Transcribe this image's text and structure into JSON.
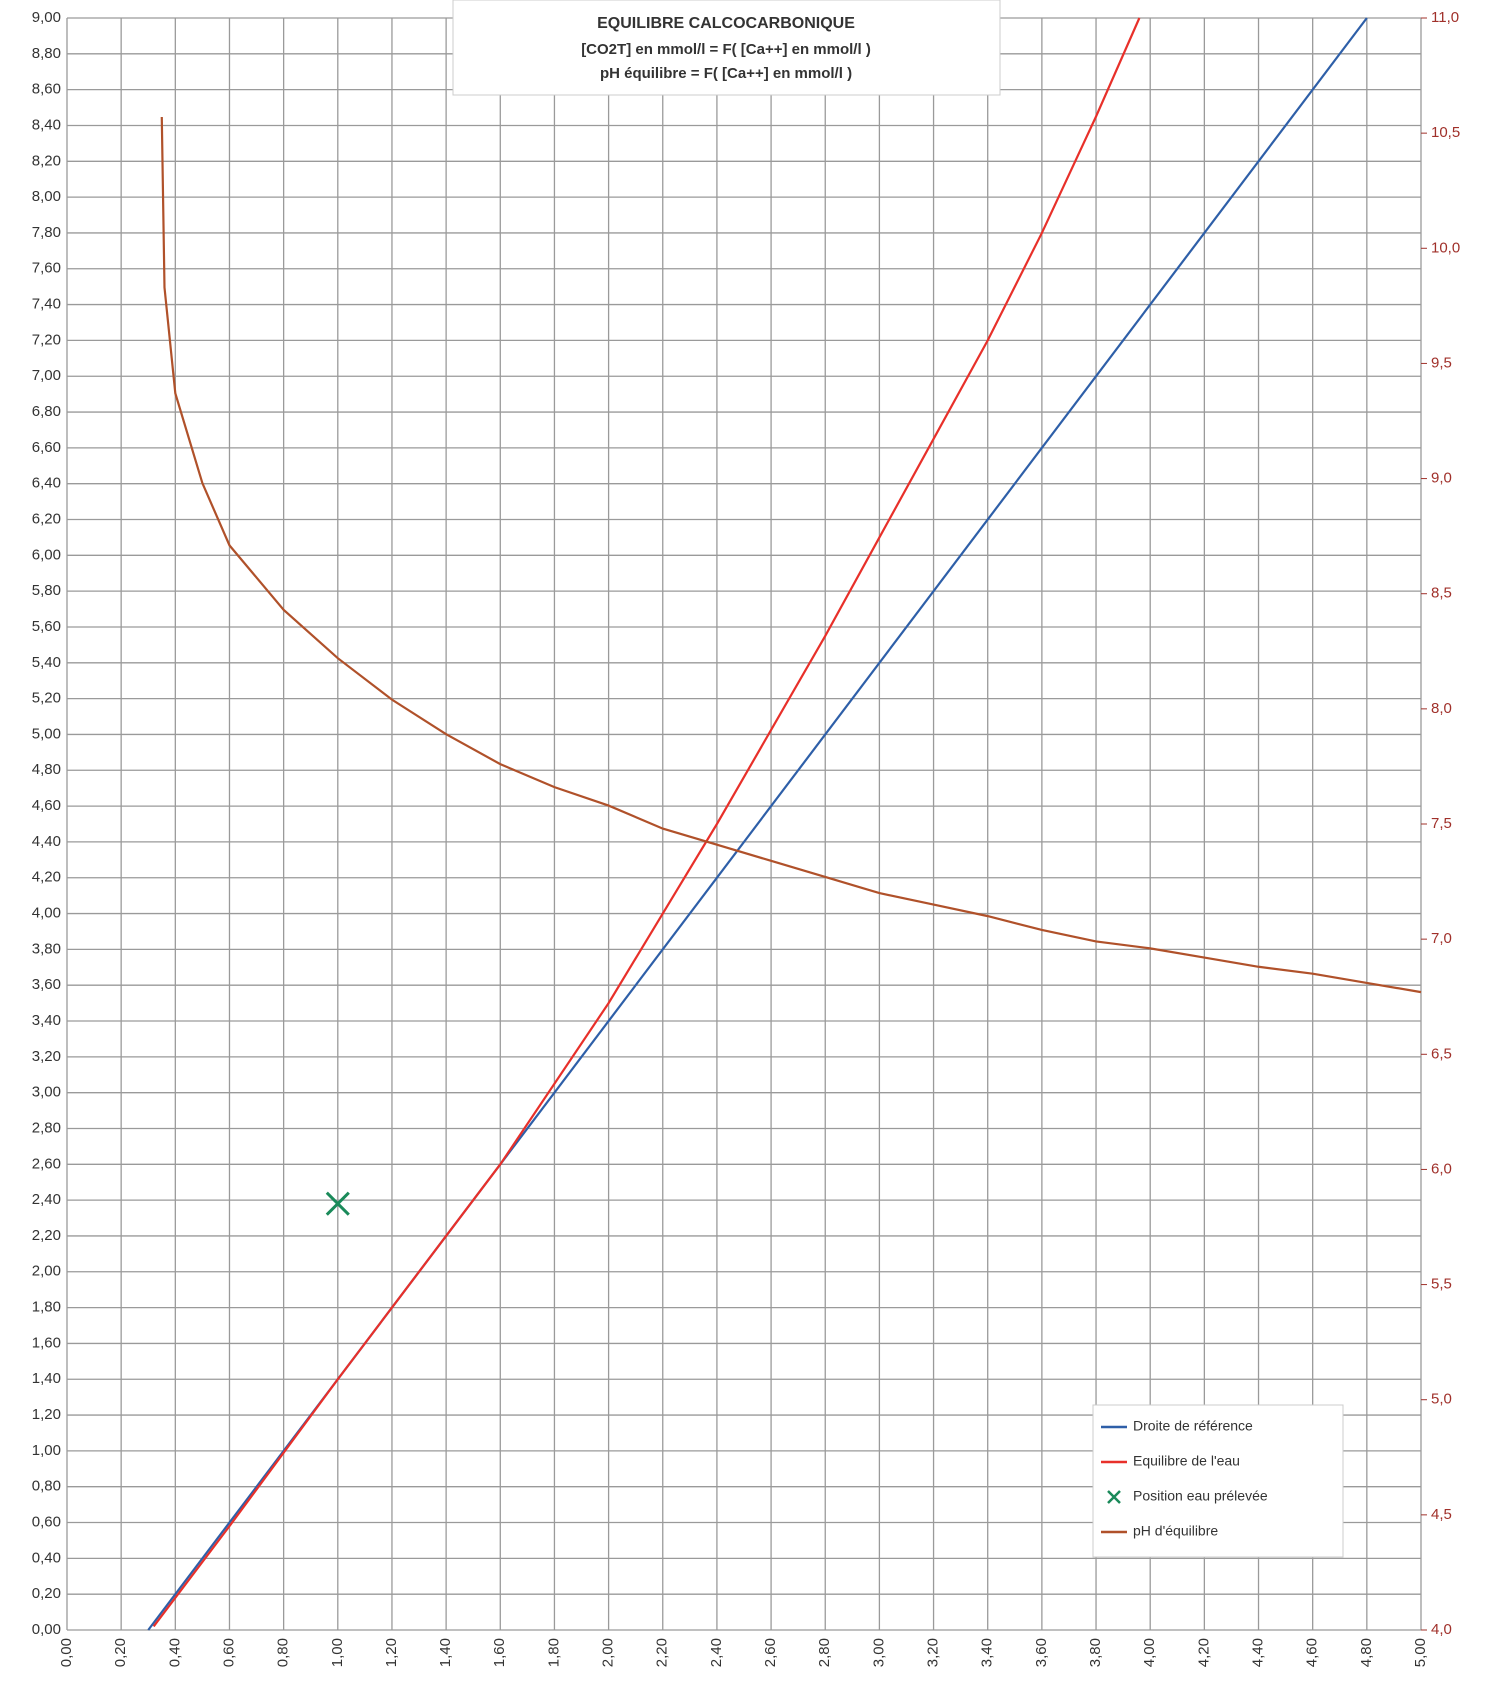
{
  "chart_data": {
    "type": "line",
    "title": "EQUILIBRE CALCOCARBONIQUE",
    "subtitle": [
      "[CO2T] en mmol/l = F( [Ca++] en mmol/l )",
      "pH équilibre = F( [Ca++] en mmol/l )"
    ],
    "xlim": [
      0,
      5
    ],
    "ylim": [
      0,
      9
    ],
    "y2lim": [
      4,
      11
    ],
    "grid": true,
    "legend": "bottom-right",
    "xticks": [
      {
        "value": 0,
        "label": "0,00"
      },
      {
        "value": 0.2,
        "label": "0,20"
      },
      {
        "value": 0.4,
        "label": "0,40"
      },
      {
        "value": 0.6,
        "label": "0,60"
      },
      {
        "value": 0.8,
        "label": "0,80"
      },
      {
        "value": 1.0,
        "label": "1,00"
      },
      {
        "value": 1.2,
        "label": "1,20"
      },
      {
        "value": 1.4,
        "label": "1,40"
      },
      {
        "value": 1.6,
        "label": "1,60"
      },
      {
        "value": 1.8,
        "label": "1,80"
      },
      {
        "value": 2.0,
        "label": "2,00"
      },
      {
        "value": 2.2,
        "label": "2,20"
      },
      {
        "value": 2.4,
        "label": "2,40"
      },
      {
        "value": 2.6,
        "label": "2,60"
      },
      {
        "value": 2.8,
        "label": "2,80"
      },
      {
        "value": 3.0,
        "label": "3,00"
      },
      {
        "value": 3.2,
        "label": "3,20"
      },
      {
        "value": 3.4,
        "label": "3,40"
      },
      {
        "value": 3.6,
        "label": "3,60"
      },
      {
        "value": 3.8,
        "label": "3,80"
      },
      {
        "value": 4.0,
        "label": "4,00"
      },
      {
        "value": 4.2,
        "label": "4,20"
      },
      {
        "value": 4.4,
        "label": "4,40"
      },
      {
        "value": 4.6,
        "label": "4,60"
      },
      {
        "value": 4.8,
        "label": "4,80"
      },
      {
        "value": 5.0,
        "label": "5,00"
      }
    ],
    "yticks": [
      {
        "value": 0,
        "label": "0,00"
      },
      {
        "value": 0.2,
        "label": "0,20"
      },
      {
        "value": 0.4,
        "label": "0,40"
      },
      {
        "value": 0.6,
        "label": "0,60"
      },
      {
        "value": 0.8,
        "label": "0,80"
      },
      {
        "value": 1.0,
        "label": "1,00"
      },
      {
        "value": 1.2,
        "label": "1,20"
      },
      {
        "value": 1.4,
        "label": "1,40"
      },
      {
        "value": 1.6,
        "label": "1,60"
      },
      {
        "value": 1.8,
        "label": "1,80"
      },
      {
        "value": 2.0,
        "label": "2,00"
      },
      {
        "value": 2.2,
        "label": "2,20"
      },
      {
        "value": 2.4,
        "label": "2,40"
      },
      {
        "value": 2.6,
        "label": "2,60"
      },
      {
        "value": 2.8,
        "label": "2,80"
      },
      {
        "value": 3.0,
        "label": "3,00"
      },
      {
        "value": 3.2,
        "label": "3,20"
      },
      {
        "value": 3.4,
        "label": "3,40"
      },
      {
        "value": 3.6,
        "label": "3,60"
      },
      {
        "value": 3.8,
        "label": "3,80"
      },
      {
        "value": 4.0,
        "label": "4,00"
      },
      {
        "value": 4.2,
        "label": "4,20"
      },
      {
        "value": 4.4,
        "label": "4,40"
      },
      {
        "value": 4.6,
        "label": "4,60"
      },
      {
        "value": 4.8,
        "label": "4,80"
      },
      {
        "value": 5.0,
        "label": "5,00"
      },
      {
        "value": 5.2,
        "label": "5,20"
      },
      {
        "value": 5.4,
        "label": "5,40"
      },
      {
        "value": 5.6,
        "label": "5,60"
      },
      {
        "value": 5.8,
        "label": "5,80"
      },
      {
        "value": 6.0,
        "label": "6,00"
      },
      {
        "value": 6.2,
        "label": "6,20"
      },
      {
        "value": 6.4,
        "label": "6,40"
      },
      {
        "value": 6.6,
        "label": "6,60"
      },
      {
        "value": 6.8,
        "label": "6,80"
      },
      {
        "value": 7.0,
        "label": "7,00"
      },
      {
        "value": 7.2,
        "label": "7,20"
      },
      {
        "value": 7.4,
        "label": "7,40"
      },
      {
        "value": 7.6,
        "label": "7,60"
      },
      {
        "value": 7.8,
        "label": "7,80"
      },
      {
        "value": 8.0,
        "label": "8,00"
      },
      {
        "value": 8.2,
        "label": "8,20"
      },
      {
        "value": 8.4,
        "label": "8,40"
      },
      {
        "value": 8.6,
        "label": "8,60"
      },
      {
        "value": 8.8,
        "label": "8,80"
      },
      {
        "value": 9.0,
        "label": "9,00"
      }
    ],
    "y2ticks": [
      {
        "value": 4.0,
        "label": "4,0"
      },
      {
        "value": 4.5,
        "label": "4,5"
      },
      {
        "value": 5.0,
        "label": "5,0"
      },
      {
        "value": 5.5,
        "label": "5,5"
      },
      {
        "value": 6.0,
        "label": "6,0"
      },
      {
        "value": 6.5,
        "label": "6,5"
      },
      {
        "value": 7.0,
        "label": "7,0"
      },
      {
        "value": 7.5,
        "label": "7,5"
      },
      {
        "value": 8.0,
        "label": "8,0"
      },
      {
        "value": 8.5,
        "label": "8,5"
      },
      {
        "value": 9.0,
        "label": "9,0"
      },
      {
        "value": 9.5,
        "label": "9,5"
      },
      {
        "value": 10.0,
        "label": "10,0"
      },
      {
        "value": 10.5,
        "label": "10,5"
      },
      {
        "value": 11.0,
        "label": "11,0"
      }
    ],
    "series": [
      {
        "name": "Droite de référence",
        "color": "#2e5fa8",
        "x": [
          0.3,
          4.8
        ],
        "values": [
          0,
          9.0
        ]
      },
      {
        "name": "Equilibre de l'eau",
        "color": "#e8302a",
        "x": [
          0.32,
          0.6,
          1.0,
          1.4,
          1.6,
          2.0,
          2.4,
          2.8,
          3.0,
          3.2,
          3.4,
          3.6,
          3.8,
          3.96
        ],
        "values": [
          0.02,
          0.58,
          1.4,
          2.2,
          2.6,
          3.5,
          4.5,
          5.55,
          6.1,
          6.65,
          7.2,
          7.8,
          8.45,
          9.0
        ]
      },
      {
        "name": "Position eau prélevée",
        "color": "#1a8a5a",
        "marker": "x",
        "x": [
          1.0
        ],
        "values": [
          2.38
        ]
      },
      {
        "name": "pH d'équilibre",
        "color": "#b0512a",
        "axis": "y2",
        "x": [
          0.35,
          0.355,
          0.36,
          0.4,
          0.5,
          0.6,
          0.8,
          1.0,
          1.2,
          1.4,
          1.6,
          1.8,
          2.0,
          2.2,
          2.4,
          2.6,
          2.8,
          3.0,
          3.2,
          3.4,
          3.6,
          3.8,
          4.0,
          4.2,
          4.4,
          4.6,
          4.8,
          5.0
        ],
        "values": [
          10.57,
          10.2,
          9.83,
          9.37,
          8.98,
          8.71,
          8.43,
          8.22,
          8.04,
          7.89,
          7.76,
          7.66,
          7.58,
          7.48,
          7.41,
          7.34,
          7.27,
          7.2,
          7.15,
          7.1,
          7.04,
          6.99,
          6.96,
          6.92,
          6.88,
          6.85,
          6.81,
          6.77
        ]
      }
    ]
  }
}
